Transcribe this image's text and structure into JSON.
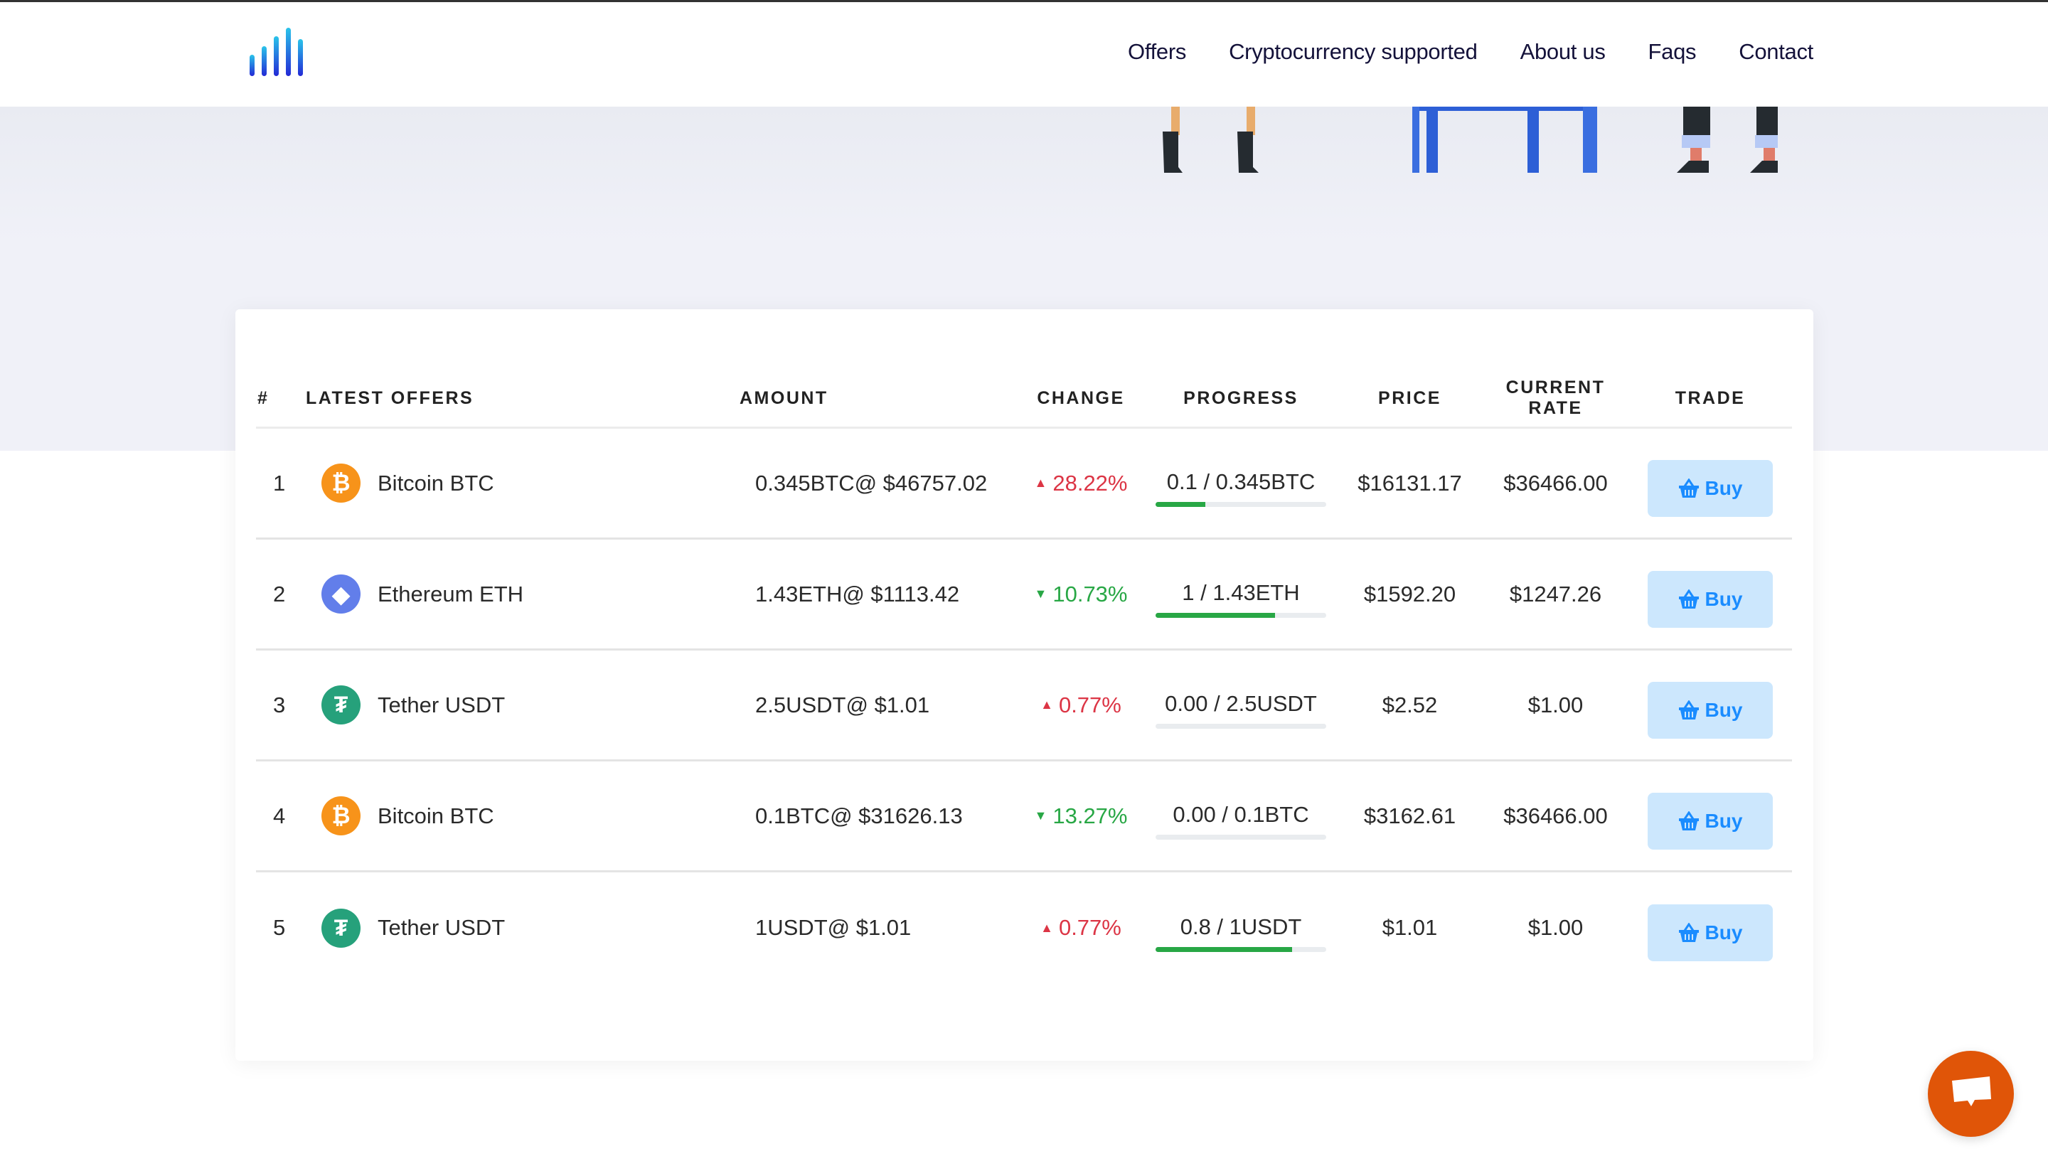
{
  "nav": {
    "items": [
      "Offers",
      "Cryptocurrency supported",
      "About us",
      "Faqs",
      "Contact"
    ]
  },
  "table": {
    "headers": [
      "#",
      "LATEST OFFERS",
      "AMOUNT",
      "CHANGE",
      "PROGRESS",
      "PRICE",
      "CURRENT RATE",
      "TRADE"
    ],
    "rows": [
      {
        "num": "1",
        "name": "Bitcoin BTC",
        "coin": "btc",
        "amount": "0.345BTC@ $46757.02",
        "change": "28.22%",
        "dir": "up",
        "progress": "0.1 / 0.345BTC",
        "fraction": 0.29,
        "price": "$16131.17",
        "rate": "$36466.00",
        "trade": "Buy"
      },
      {
        "num": "2",
        "name": "Ethereum ETH",
        "coin": "eth",
        "amount": "1.43ETH@ $1113.42",
        "change": "10.73%",
        "dir": "down",
        "progress": "1 / 1.43ETH",
        "fraction": 0.7,
        "price": "$1592.20",
        "rate": "$1247.26",
        "trade": "Buy"
      },
      {
        "num": "3",
        "name": "Tether USDT",
        "coin": "usdt",
        "amount": "2.5USDT@ $1.01",
        "change": "0.77%",
        "dir": "up",
        "progress": "0.00 / 2.5USDT",
        "fraction": 0,
        "price": "$2.52",
        "rate": "$1.00",
        "trade": "Buy"
      },
      {
        "num": "4",
        "name": "Bitcoin BTC",
        "coin": "btc",
        "amount": "0.1BTC@ $31626.13",
        "change": "13.27%",
        "dir": "down",
        "progress": "0.00 / 0.1BTC",
        "fraction": 0,
        "price": "$3162.61",
        "rate": "$36466.00",
        "trade": "Buy"
      },
      {
        "num": "5",
        "name": "Tether USDT",
        "coin": "usdt",
        "amount": "1USDT@ $1.01",
        "change": "0.77%",
        "dir": "up",
        "progress": "0.8 / 1USDT",
        "fraction": 0.8,
        "price": "$1.01",
        "rate": "$1.00",
        "trade": "Buy"
      }
    ]
  },
  "colors": {
    "accent": "#1a8cff",
    "up": "#dc3545",
    "down": "#28a745",
    "chat": "#e05508",
    "btc": "#f7931a",
    "eth": "#627eea",
    "usdt": "#26a17b"
  }
}
